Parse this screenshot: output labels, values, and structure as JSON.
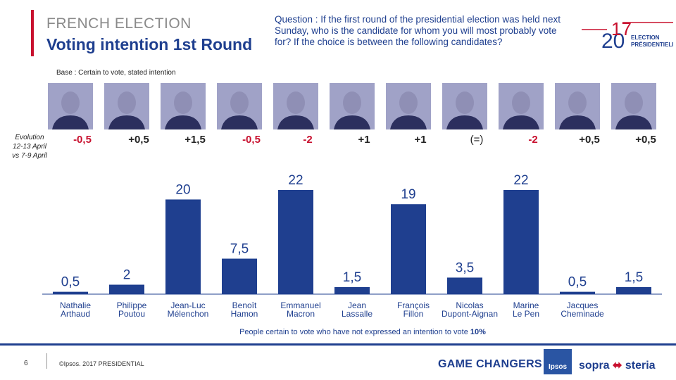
{
  "header": {
    "title_top": "FRENCH ELECTION",
    "title_main": "Voting intention 1st Round",
    "question": "Question : If the first round of the presidential election was held next Sunday, who is the candidate for whom you will most probably vote for? If the choice is between the following candidates?"
  },
  "logo": {
    "year_a": "20",
    "year_b": "17",
    "line1": "ELECTION",
    "line2": "PRÉSIDENTIELLE"
  },
  "base_text": "Base : Certain to vote, stated intention",
  "evolution_label": [
    "Evolution",
    "12-13 April",
    "vs 7-9 April"
  ],
  "colors": {
    "bar": "#1f3f8f",
    "negative": "#c8102e",
    "positive": "#1f3f8f",
    "accent": "#c8102e"
  },
  "chart_data": {
    "type": "bar",
    "categories": [
      [
        "Nathalie",
        "Arthaud"
      ],
      [
        "Philippe",
        "Poutou"
      ],
      [
        "Jean-Luc",
        "Mélenchon"
      ],
      [
        "Benoît",
        "Hamon"
      ],
      [
        "Emmanuel",
        "Macron"
      ],
      [
        "Jean",
        "Lassalle"
      ],
      [
        "François",
        "Fillon"
      ],
      [
        "Nicolas",
        "Dupont-Aignan"
      ],
      [
        "Marine",
        "Le Pen"
      ],
      [
        "Jacques",
        "Cheminade"
      ],
      [
        "",
        ""
      ]
    ],
    "values": [
      0.5,
      2,
      20,
      7.5,
      22,
      1.5,
      19,
      3.5,
      22,
      0.5,
      1.5
    ],
    "value_labels": [
      "0,5",
      "2",
      "20",
      "7,5",
      "22",
      "1,5",
      "19",
      "3,5",
      "22",
      "0,5",
      "1,5"
    ],
    "evolution": [
      "-0,5",
      "+0,5",
      "+1,5",
      "-0,5",
      "-2",
      "+1",
      "+1",
      "(=)",
      "-2",
      "+0,5",
      "+0,5"
    ],
    "evolution_sign": [
      "neg",
      "pos",
      "pos",
      "neg",
      "neg",
      "pos",
      "pos",
      "neutral",
      "neg",
      "pos",
      "pos"
    ],
    "ylim": [
      0,
      22
    ],
    "grid": false
  },
  "footnote": {
    "text": "People certain to vote who have not expressed an intention to vote ",
    "value": "10%"
  },
  "footer": {
    "page_number": "6",
    "copyright": "©Ipsos.  2017 PRESIDENTIAL",
    "game_changers": "GAME CHANGERS",
    "ipsos": "Ipsos",
    "sopra_a": "sopra",
    "sopra_b": "steria"
  }
}
